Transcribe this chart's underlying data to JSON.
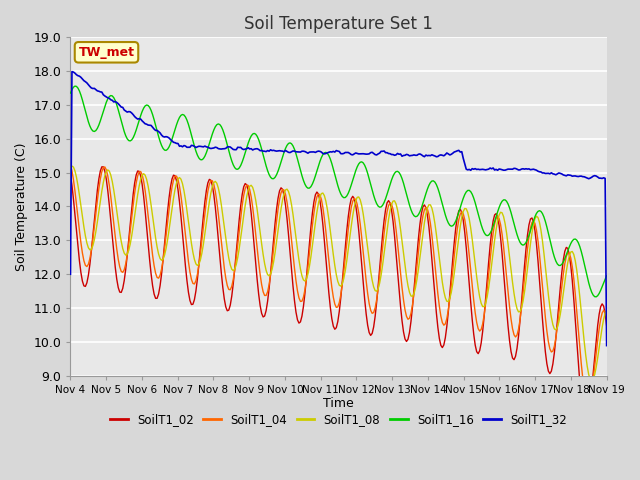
{
  "title": "Soil Temperature Set 1",
  "xlabel": "Time",
  "ylabel": "Soil Temperature (C)",
  "ylim": [
    9.0,
    19.0
  ],
  "yticks": [
    9.0,
    10.0,
    11.0,
    12.0,
    13.0,
    14.0,
    15.0,
    16.0,
    17.0,
    18.0,
    19.0
  ],
  "xtick_labels": [
    "Nov 4",
    "Nov 5",
    "Nov 6",
    "Nov 7",
    "Nov 8",
    "Nov 9",
    "Nov 10",
    "Nov 11",
    "Nov 12",
    "Nov 13",
    "Nov 14",
    "Nov 15",
    "Nov 16",
    "Nov 17",
    "Nov 18",
    "Nov 19"
  ],
  "series": {
    "SoilT1_02": {
      "color": "#cc0000",
      "lw": 1.0
    },
    "SoilT1_04": {
      "color": "#ff6600",
      "lw": 1.0
    },
    "SoilT1_08": {
      "color": "#cccc00",
      "lw": 1.0
    },
    "SoilT1_16": {
      "color": "#00cc00",
      "lw": 1.0
    },
    "SoilT1_32": {
      "color": "#0000cc",
      "lw": 1.2
    }
  },
  "annotation": "TW_met",
  "annotation_color": "#cc0000",
  "annotation_bg": "#ffffcc",
  "bg_color": "#e8e8e8",
  "grid_color": "#ffffff",
  "title_fontsize": 12
}
